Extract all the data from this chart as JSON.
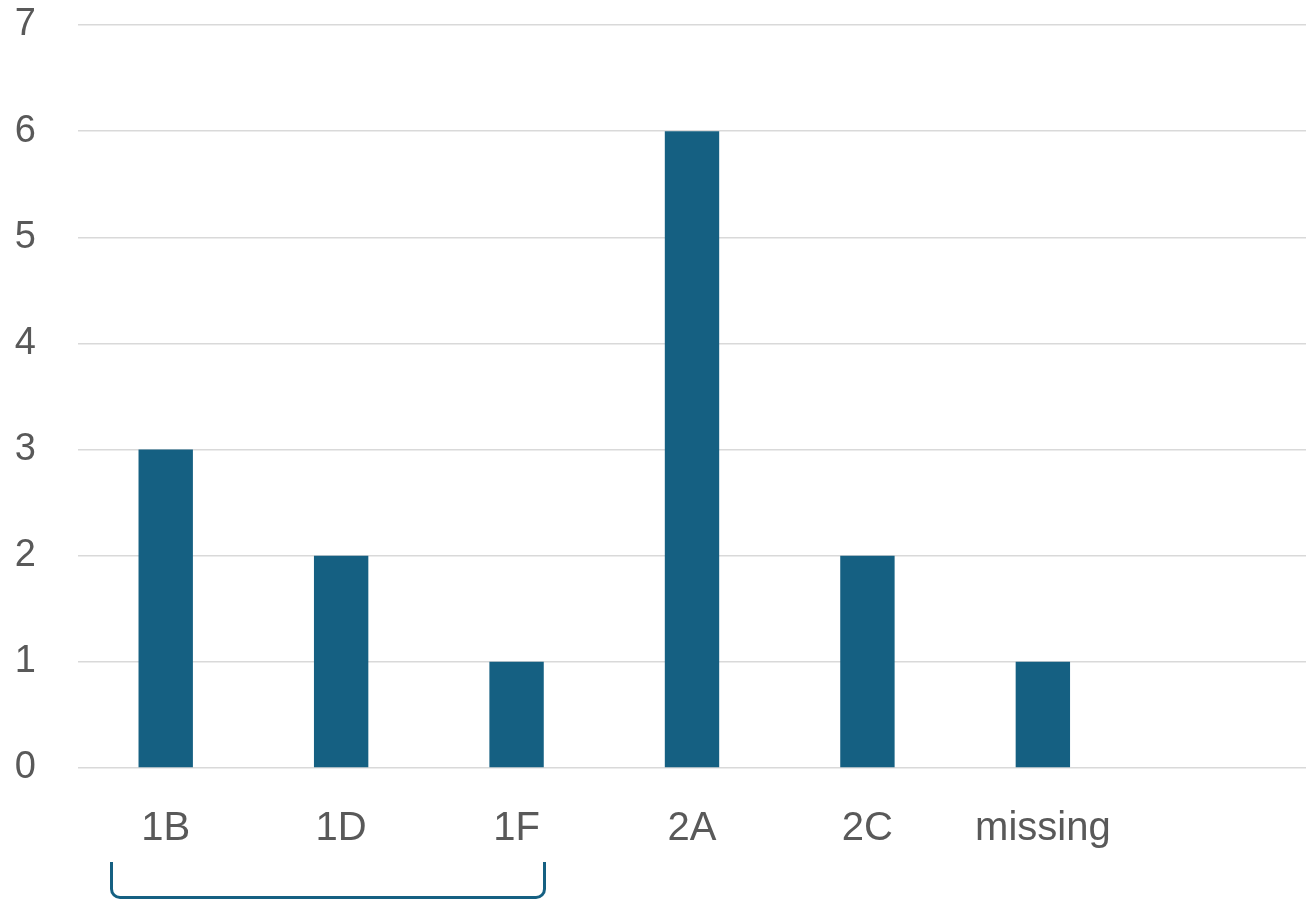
{
  "chart_data": {
    "type": "bar",
    "categories": [
      "1B",
      "1D",
      "1F",
      "2A",
      "2C",
      "missing",
      null
    ],
    "values": [
      3,
      2,
      1,
      6,
      2,
      1,
      null
    ],
    "color": "#156082",
    "ylim": [
      0,
      7
    ],
    "yticks": [
      0,
      1,
      2,
      3,
      4,
      5,
      6,
      7
    ],
    "grid": "y"
  }
}
